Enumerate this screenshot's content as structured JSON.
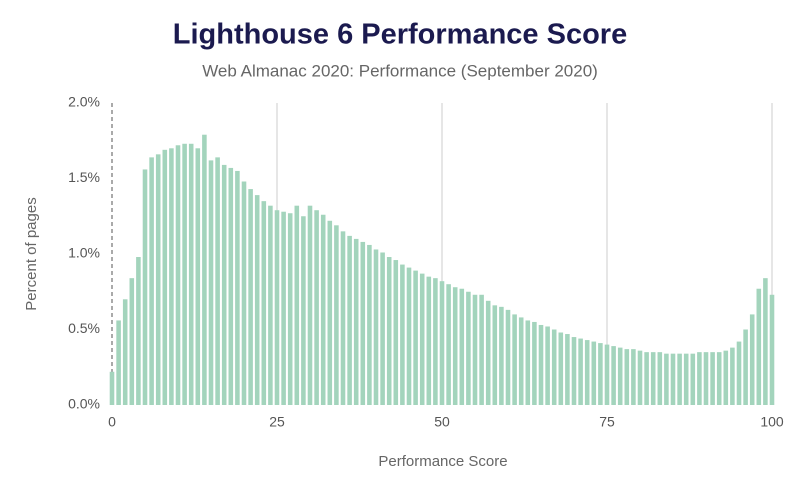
{
  "chart_data": {
    "type": "bar",
    "title": "Lighthouse 6 Performance Score",
    "subtitle": "Web Almanac 2020: Performance (September 2020)",
    "x_label": "Performance Score",
    "y_label": "Percent of pages",
    "color": "#a3d4bc",
    "x": [
      0,
      1,
      2,
      3,
      4,
      5,
      6,
      7,
      8,
      9,
      10,
      11,
      12,
      13,
      14,
      15,
      16,
      17,
      18,
      19,
      20,
      21,
      22,
      23,
      24,
      25,
      26,
      27,
      28,
      29,
      30,
      31,
      32,
      33,
      34,
      35,
      36,
      37,
      38,
      39,
      40,
      41,
      42,
      43,
      44,
      45,
      46,
      47,
      48,
      49,
      50,
      51,
      52,
      53,
      54,
      55,
      56,
      57,
      58,
      59,
      60,
      61,
      62,
      63,
      64,
      65,
      66,
      67,
      68,
      69,
      70,
      71,
      72,
      73,
      74,
      75,
      76,
      77,
      78,
      79,
      80,
      81,
      82,
      83,
      84,
      85,
      86,
      87,
      88,
      89,
      90,
      91,
      92,
      93,
      94,
      95,
      96,
      97,
      98,
      99,
      100
    ],
    "values": [
      0.22,
      0.56,
      0.7,
      0.84,
      0.98,
      1.56,
      1.64,
      1.66,
      1.69,
      1.7,
      1.72,
      1.73,
      1.73,
      1.7,
      1.79,
      1.62,
      1.64,
      1.59,
      1.57,
      1.55,
      1.48,
      1.43,
      1.39,
      1.35,
      1.32,
      1.29,
      1.28,
      1.27,
      1.32,
      1.25,
      1.32,
      1.29,
      1.26,
      1.22,
      1.19,
      1.15,
      1.12,
      1.1,
      1.08,
      1.06,
      1.03,
      1.01,
      0.98,
      0.96,
      0.93,
      0.91,
      0.89,
      0.87,
      0.85,
      0.84,
      0.82,
      0.8,
      0.78,
      0.77,
      0.75,
      0.73,
      0.73,
      0.69,
      0.66,
      0.65,
      0.63,
      0.6,
      0.58,
      0.56,
      0.55,
      0.53,
      0.52,
      0.5,
      0.48,
      0.47,
      0.45,
      0.44,
      0.43,
      0.42,
      0.41,
      0.4,
      0.39,
      0.38,
      0.37,
      0.37,
      0.36,
      0.35,
      0.35,
      0.35,
      0.34,
      0.34,
      0.34,
      0.34,
      0.34,
      0.35,
      0.35,
      0.35,
      0.35,
      0.36,
      0.38,
      0.42,
      0.5,
      0.6,
      0.77,
      0.84,
      0.73
    ],
    "xlim": [
      0,
      100
    ],
    "xticks": [
      0,
      25,
      50,
      75,
      100
    ],
    "ylim": [
      0,
      2
    ],
    "yticks": [
      {
        "value": 0,
        "label": "0.0%"
      },
      {
        "value": 0.5,
        "label": "0.5%"
      },
      {
        "value": 1,
        "label": "1.0%"
      },
      {
        "value": 1.5,
        "label": "1.5%"
      },
      {
        "value": 2,
        "label": "2.0%"
      }
    ],
    "grid": true
  }
}
